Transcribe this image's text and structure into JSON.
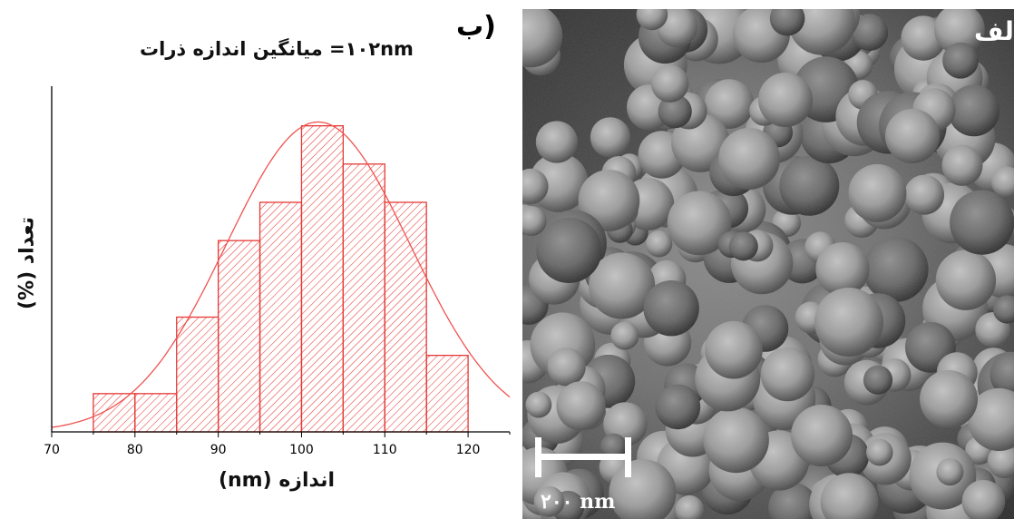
{
  "panels": {
    "histogram_letter": "ب)",
    "sem_letter": "الف)"
  },
  "chart_data": {
    "type": "bar",
    "title": "۱۰۲nm= میانگین اندازه ذرات",
    "xlabel": "اندازه (nm)",
    "ylabel": "تعداد (%)",
    "bins": [
      {
        "from": 75,
        "to": 80,
        "value": 1
      },
      {
        "from": 80,
        "to": 85,
        "value": 1
      },
      {
        "from": 85,
        "to": 90,
        "value": 3
      },
      {
        "from": 90,
        "to": 95,
        "value": 5
      },
      {
        "from": 95,
        "to": 100,
        "value": 6
      },
      {
        "from": 100,
        "to": 105,
        "value": 8
      },
      {
        "from": 105,
        "to": 110,
        "value": 7
      },
      {
        "from": 110,
        "to": 115,
        "value": 6
      },
      {
        "from": 115,
        "to": 120,
        "value": 2
      }
    ],
    "xlim": [
      70,
      125
    ],
    "ylim": [
      0,
      8.3
    ],
    "xticks": [
      70,
      80,
      90,
      100,
      110,
      120
    ],
    "fit_curve": {
      "type": "normal",
      "mean": 102,
      "sd": 11,
      "peak": 8.1
    },
    "colors": {
      "bars": "#e53935",
      "curve": "#ef5350",
      "axes": "#000000"
    },
    "grid": false
  },
  "scale_bar": {
    "label": "۲۰۰ nm"
  }
}
